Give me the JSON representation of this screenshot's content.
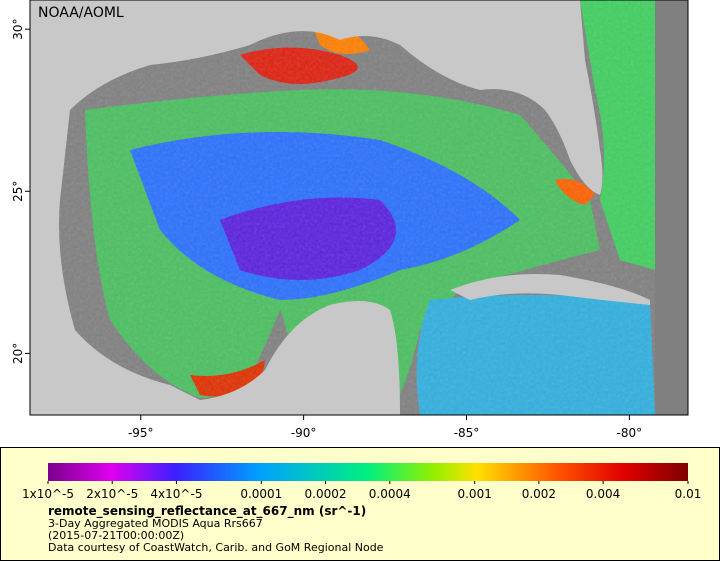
{
  "map": {
    "credit": "NOAA/AOML",
    "xlim": [
      -98.4,
      -78.2
    ],
    "ylim": [
      30.9,
      18.1
    ],
    "xticks": [
      {
        "value": -95,
        "label": "-95°"
      },
      {
        "value": -90,
        "label": "-90°"
      },
      {
        "value": -85,
        "label": "-85°"
      },
      {
        "value": -80,
        "label": "-80°"
      }
    ],
    "yticks": [
      {
        "value": 30,
        "label": "30°"
      },
      {
        "value": 25,
        "label": "25°"
      },
      {
        "value": 20,
        "label": "20°"
      }
    ]
  },
  "colorbar": {
    "scale": "log",
    "lim": [
      1e-05,
      0.01
    ],
    "ticks": [
      {
        "value": 1e-05,
        "label": "1x10^-5"
      },
      {
        "value": 2e-05,
        "label": "2x10^-5"
      },
      {
        "value": 4e-05,
        "label": "4x10^-5"
      },
      0.0001,
      0.0002,
      0.0004,
      0.001,
      0.002,
      0.004,
      0.01
    ]
  },
  "caption": {
    "title": "remote_sensing_reflectance_at_667_nm (sr^-1)",
    "lines": [
      "3-Day Aggregated MODIS Aqua Rrs667",
      "(2015-07-21T00:00:00Z)",
      "Data courtesy of CoastWatch, Carib. and GoM Regional Node"
    ]
  }
}
